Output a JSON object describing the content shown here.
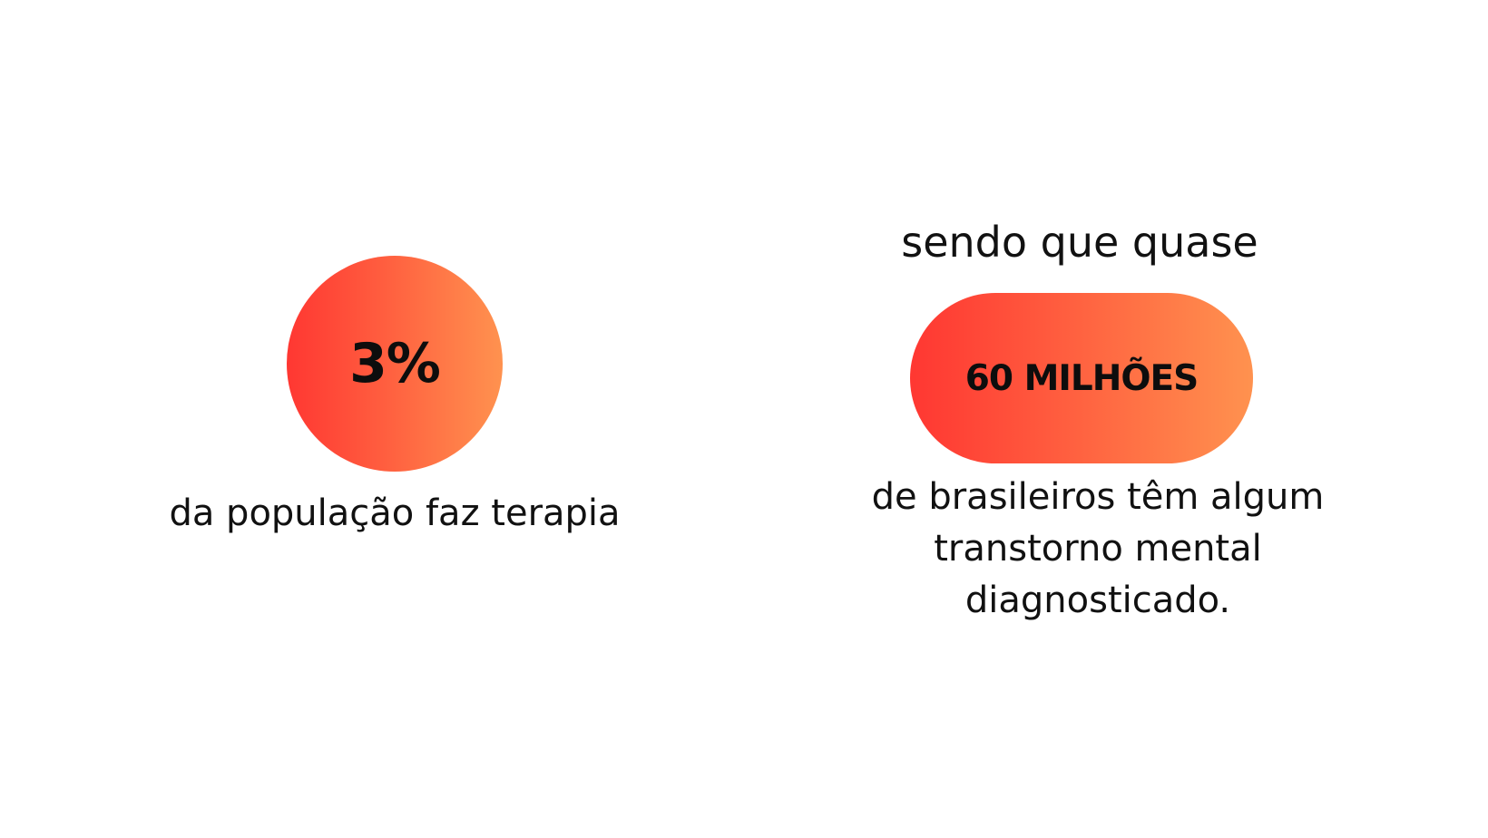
{
  "stats": [
    {
      "value": "3%",
      "caption": "da população faz terapia"
    },
    {
      "lead": "sendo que quase",
      "value": "60 MILHÕES",
      "caption": "de brasileiros têm algum transtorno mental diagnosticado."
    }
  ],
  "colors": {
    "gradient_start": "#ff3732",
    "gradient_end": "#ff924f",
    "text": "#111111",
    "background": "#ffffff"
  }
}
